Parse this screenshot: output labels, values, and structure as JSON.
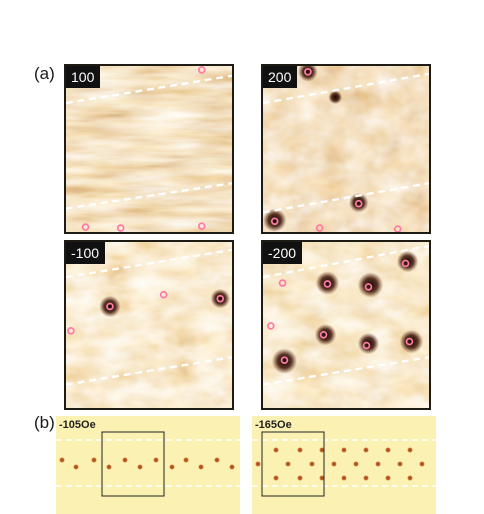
{
  "figure": {
    "label_a": "(a)",
    "label_b": "(b)"
  },
  "panel_a": {
    "images": [
      {
        "id": "p100",
        "field": "100",
        "skyrmion_count": 4
      },
      {
        "id": "p200",
        "field": "200",
        "skyrmion_count": 5
      },
      {
        "id": "pm100",
        "field": "-100",
        "skyrmion_count": 4
      },
      {
        "id": "pm200",
        "field": "-200",
        "skyrmion_count": 9
      }
    ],
    "colormap": {
      "low": "#2a0c06",
      "mid": "#c1701f",
      "high": "#fff6e6"
    },
    "marker_color": "#ff7aa6",
    "boundary_line_color": "#ffffff"
  },
  "panel_b": {
    "simulations": [
      {
        "id": "s105",
        "label": "-105Oe"
      },
      {
        "id": "s165",
        "label": "-165Oe"
      }
    ],
    "background_color": "#fbf1b2",
    "dot_color": "#b5581e",
    "dash_color": "#ffffff"
  }
}
